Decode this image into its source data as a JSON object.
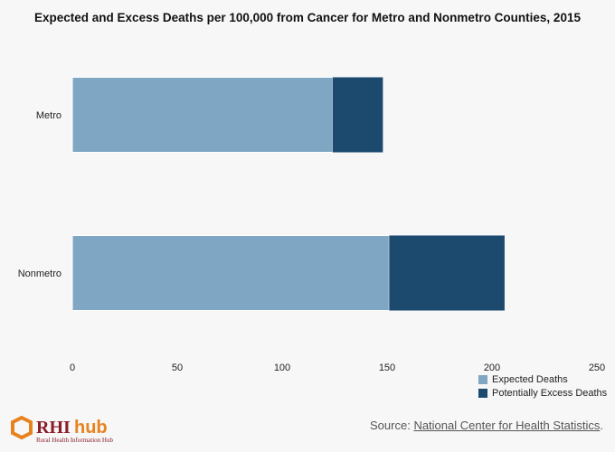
{
  "chart_data": {
    "type": "bar",
    "orientation": "horizontal",
    "stacked": true,
    "title": "Expected and Excess Deaths per 100,000 from Cancer for Metro and Nonmetro Counties, 2015",
    "categories": [
      "Metro",
      "Nonmetro"
    ],
    "series": [
      {
        "name": "Expected Deaths",
        "color": "#7fa6c3",
        "values": [
          124,
          151
        ]
      },
      {
        "name": "Potentially Excess Deaths",
        "color": "#1c4a6e",
        "values": [
          24,
          55
        ]
      }
    ],
    "xlim": [
      0,
      250
    ],
    "xticks": [
      0,
      50,
      100,
      150,
      200,
      250
    ],
    "xlabel": "",
    "ylabel": "",
    "grid": false,
    "legend_position": "bottom-right"
  },
  "source": {
    "prefix": "Source: ",
    "link_text": "National Center for Health Statistics",
    "suffix": "."
  },
  "logo": {
    "brand_rhi": "RHI",
    "brand_hub": "hub",
    "tagline": "Rural Health Information Hub"
  }
}
